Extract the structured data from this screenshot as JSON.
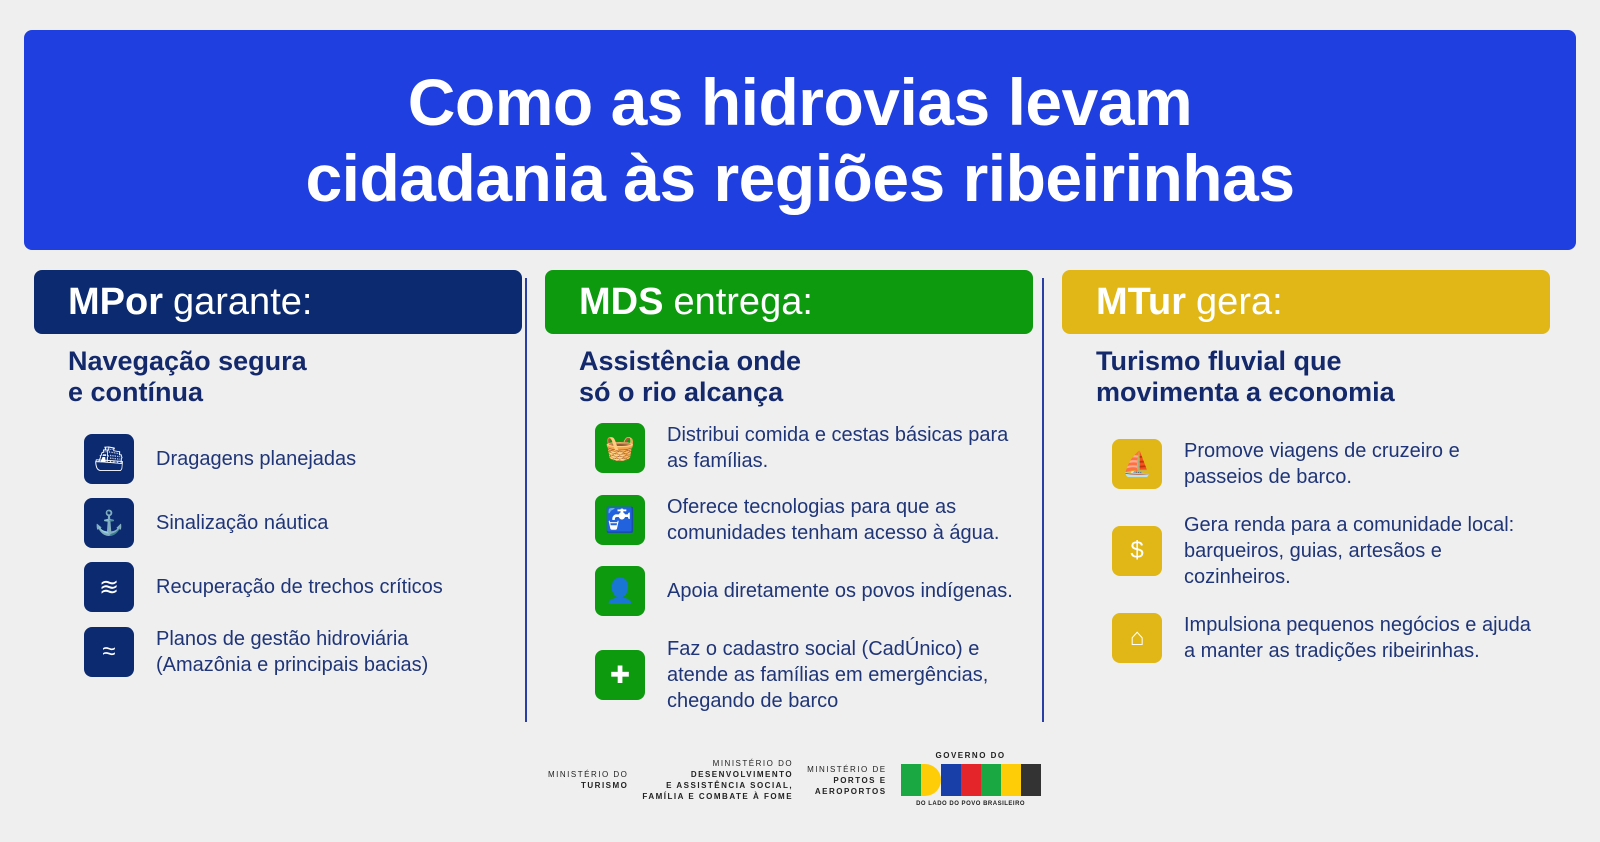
{
  "title": {
    "line1": "Como as hidrovias levam",
    "line2": "cidadania às regiões ribeirinhas"
  },
  "columns": [
    {
      "org": "MPor",
      "verb": "garante:",
      "color": "#0b2a70",
      "subtitle": [
        "Navegação segura",
        "e contínua"
      ],
      "items": [
        {
          "icon": "ship-icon",
          "text": "Dragagens planejadas"
        },
        {
          "icon": "buoy-boat-icon",
          "text": "Sinalização náutica"
        },
        {
          "icon": "wave-recovery-icon",
          "text": "Recuperação de trechos críticos"
        },
        {
          "icon": "water-waves-icon",
          "text": "Planos de gestão hidroviária (Amazônia e principais bacias)"
        }
      ]
    },
    {
      "org": "MDS",
      "verb": "entrega:",
      "color": "#0e9a0e",
      "subtitle": [
        "Assistência onde",
        "só o rio alcança"
      ],
      "items": [
        {
          "icon": "food-basket-icon",
          "text": "Distribui comida e cestas básicas para as famílias."
        },
        {
          "icon": "water-tap-icon",
          "text": "Oferece tecnologias para que as comunidades tenham acesso à água."
        },
        {
          "icon": "indigenous-person-icon",
          "text": "Apoia diretamente os povos indígenas."
        },
        {
          "icon": "medical-kit-icon",
          "text": "Faz o cadastro social (CadÚnico) e atende as famílias em emergências, chegando de barco"
        }
      ]
    },
    {
      "org": "MTur",
      "verb": "gera:",
      "color": "#e0b716",
      "subtitle": [
        "Turismo fluvial que",
        "movimenta a economia"
      ],
      "items": [
        {
          "icon": "cruise-icon",
          "text": "Promove viagens de cruzeiro e passeios de barco."
        },
        {
          "icon": "money-hand-icon",
          "text": "Gera renda para a comunidade local: barqueiros, guias, artesãos e cozinheiros."
        },
        {
          "icon": "small-business-icon",
          "text": "Impulsiona pequenos negócios e ajuda a manter as tradições ribeirinhas."
        }
      ]
    }
  ],
  "footer": {
    "tur": [
      "MINISTÉRIO DO",
      "TURISMO"
    ],
    "mds": [
      "MINISTÉRIO DO",
      "DESENVOLVIMENTO",
      "E ASSISTÊNCIA SOCIAL,",
      "FAMÍLIA E COMBATE À FOME"
    ],
    "mpor": [
      "MINISTÉRIO DE",
      "PORTOS E",
      "AEROPORTOS"
    ],
    "gov_top": "GOVERNO DO",
    "gov_logo": "BRASIL",
    "gov_bottom": "DO LADO DO POVO BRASILEIRO"
  }
}
